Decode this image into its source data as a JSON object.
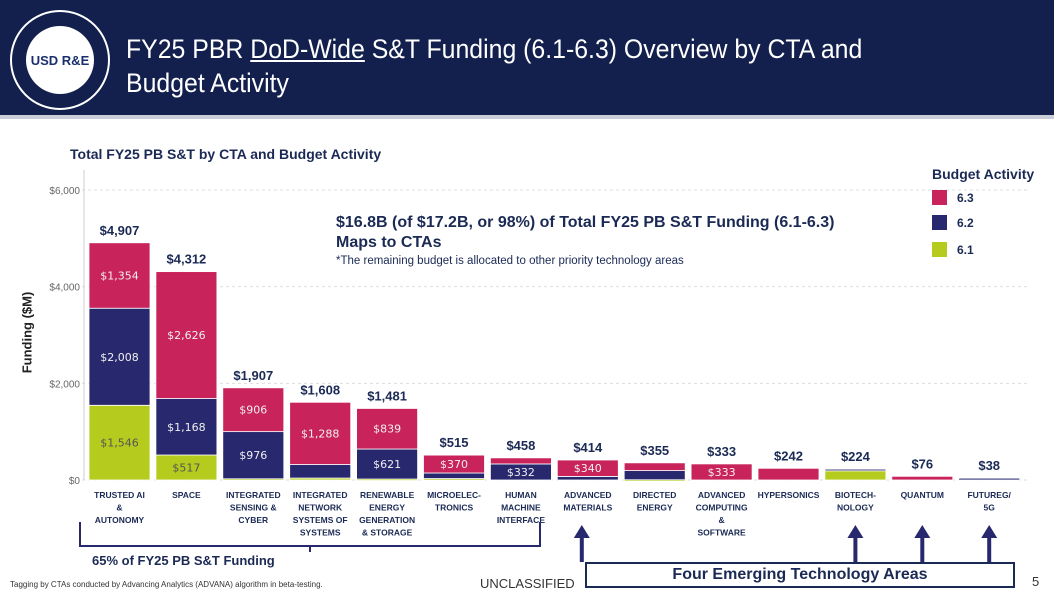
{
  "header": {
    "title_parts": [
      "FY25 PBR ",
      "DoD-Wide",
      " S&T Funding  (6.1-6.3) Overview by CTA and"
    ],
    "title_line2": "Budget Activity",
    "logo_text": "USD R&E"
  },
  "subtitle": "Total FY25 PB S&T by CTA and Budget Activity",
  "annotation": {
    "headline": "$16.8B (of $17.2B, or 98%) of Total FY25 PB S&T Funding (6.1-6.3) Maps to CTAs",
    "note": "*The remaining budget is allocated to other priority technology areas"
  },
  "brace_label": "65% of FY25 PB S&T Funding",
  "emerging_label": "Four Emerging Technology Areas",
  "footer": {
    "note": "Tagging by CTAs conducted by Advancing Analytics (ADVANA) algorithm in beta-testing.",
    "classification": "UNCLASSIFIED",
    "page": "5"
  },
  "colors": {
    "6.1": "#b5cc1e",
    "6.2": "#28286e",
    "6.3": "#c8235a"
  },
  "chart_data": {
    "type": "bar",
    "stacked": true,
    "title": "Total FY25 PB S&T by CTA and Budget Activity",
    "ylabel": "Funding ($M)",
    "ylim": [
      0,
      6000
    ],
    "yticks": [
      0,
      2000,
      4000,
      6000
    ],
    "ytick_labels": [
      "$0",
      "$2,000",
      "$4,000",
      "$6,000"
    ],
    "legend": {
      "title": "Budget Activity",
      "entries": [
        "6.3",
        "6.2",
        "6.1"
      ],
      "placement": "top-right"
    },
    "categories": [
      "TRUSTED AI & AUTONOMY",
      "SPACE",
      "INTEGRATED SENSING & CYBER",
      "INTEGRATED NETWORK SYSTEMS OF SYSTEMS",
      "RENEWABLE ENERGY GENERATION & STORAGE",
      "MICROELEC-TRONICS",
      "HUMAN MACHINE INTERFACE",
      "ADVANCED MATERIALS",
      "DIRECTED ENERGY",
      "ADVANCED COMPUTING & SOFTWARE",
      "HYPERSONICS",
      "BIOTECH-NOLOGY",
      "QUANTUM",
      "FUTUREG/ 5G"
    ],
    "category_lines": [
      [
        "TRUSTED AI",
        "&",
        "AUTONOMY"
      ],
      [
        "SPACE"
      ],
      [
        "INTEGRATED",
        "SENSING &",
        "CYBER"
      ],
      [
        "INTEGRATED",
        "NETWORK",
        "SYSTEMS OF",
        "SYSTEMS"
      ],
      [
        "RENEWABLE",
        "ENERGY",
        "GENERATION",
        "& STORAGE"
      ],
      [
        "MICROELEC-",
        "TRONICS"
      ],
      [
        "HUMAN",
        "MACHINE",
        "INTERFACE"
      ],
      [
        "ADVANCED",
        "MATERIALS"
      ],
      [
        "DIRECTED",
        "ENERGY"
      ],
      [
        "ADVANCED",
        "COMPUTING",
        "&",
        "SOFTWARE"
      ],
      [
        "HYPERSONICS"
      ],
      [
        "BIOTECH-",
        "NOLOGY"
      ],
      [
        "QUANTUM"
      ],
      [
        "FUTUREG/",
        "5G"
      ]
    ],
    "series": [
      {
        "name": "6.1",
        "values": [
          1546,
          517,
          25,
          40,
          20,
          30,
          0,
          0,
          5,
          0,
          0,
          190,
          0,
          0
        ],
        "labels": [
          "$1,546",
          "$517",
          "",
          "",
          "",
          "",
          "",
          "",
          "",
          "",
          "",
          "",
          "",
          ""
        ]
      },
      {
        "name": "6.2",
        "values": [
          2008,
          1168,
          976,
          280,
          621,
          115,
          332,
          74,
          190,
          0,
          0,
          34,
          0,
          38
        ],
        "labels": [
          "$2,008",
          "$1,168",
          "$976",
          "",
          "$621",
          "",
          "$332",
          "",
          "",
          "",
          "",
          "",
          "",
          ""
        ]
      },
      {
        "name": "6.3",
        "values": [
          1354,
          2626,
          906,
          1288,
          839,
          370,
          126,
          340,
          160,
          333,
          242,
          0,
          76,
          0
        ],
        "labels": [
          "$1,354",
          "$2,626",
          "$906",
          "$1,288",
          "$839",
          "$370",
          "",
          "$340",
          "",
          "$333",
          "",
          "",
          "",
          ""
        ]
      }
    ],
    "totals": [
      "$4,907",
      "$4,312",
      "$1,907",
      "$1,608",
      "$1,481",
      "$515",
      "$458",
      "$414",
      "$355",
      "$333",
      "$242",
      "$224",
      "$76",
      "$38"
    ],
    "emerging_arrows": [
      "ADVANCED MATERIALS",
      "BIOTECH-NOLOGY",
      "QUANTUM",
      "FUTUREG/ 5G"
    ]
  }
}
